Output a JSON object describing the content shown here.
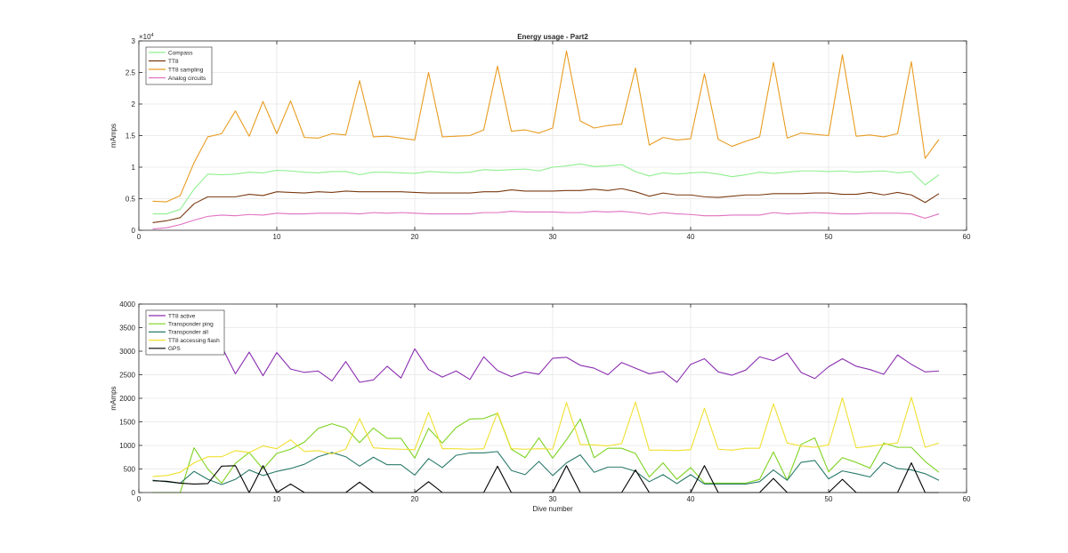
{
  "chart_data": [
    {
      "type": "line",
      "title": "Energy usage - Part2",
      "xlabel": "",
      "ylabel": "mAmps",
      "xlim": [
        0,
        60
      ],
      "ylim": [
        0,
        30000
      ],
      "x_ticks": [
        0,
        10,
        20,
        30,
        40,
        50,
        60
      ],
      "y_ticks": [
        0,
        5000,
        10000,
        15000,
        20000,
        25000,
        30000
      ],
      "y_tick_labels": [
        "0",
        "0.5",
        "1",
        "1.5",
        "2",
        "2.5",
        "3"
      ],
      "y_exponent": "×10",
      "y_exponent_power": "4",
      "grid": true,
      "legend_position": "top-left",
      "x": [
        1,
        2,
        3,
        4,
        5,
        6,
        7,
        8,
        9,
        10,
        11,
        12,
        13,
        14,
        15,
        16,
        17,
        18,
        19,
        20,
        21,
        22,
        23,
        24,
        25,
        26,
        27,
        28,
        29,
        30,
        31,
        32,
        33,
        34,
        35,
        36,
        37,
        38,
        39,
        40,
        41,
        42,
        43,
        44,
        45,
        46,
        47,
        48,
        49,
        50,
        51,
        52,
        53,
        54,
        55,
        56,
        57,
        58
      ],
      "series": [
        {
          "name": "Compass",
          "color": "#8fef8f",
          "values": [
            2600,
            2600,
            3300,
            6500,
            8900,
            8800,
            8900,
            9200,
            9100,
            9500,
            9400,
            9200,
            9100,
            9300,
            9300,
            8800,
            9200,
            9200,
            9100,
            9000,
            9300,
            9200,
            9100,
            9200,
            9600,
            9500,
            9600,
            9700,
            9400,
            10000,
            10200,
            10500,
            10100,
            10200,
            10400,
            9300,
            8600,
            9100,
            8900,
            9100,
            9200,
            8900,
            8500,
            8800,
            9200,
            9000,
            9200,
            9400,
            9400,
            9300,
            9400,
            9200,
            9300,
            9400,
            9100,
            9300,
            7200,
            8800
          ]
        },
        {
          "name": "TT8",
          "color": "#7a3a12",
          "values": [
            1200,
            1500,
            2000,
            4200,
            5300,
            5300,
            5300,
            5700,
            5500,
            6100,
            6000,
            5900,
            6100,
            6000,
            6200,
            6100,
            6100,
            6100,
            6100,
            6000,
            5900,
            5900,
            5900,
            5900,
            6100,
            6100,
            6400,
            6200,
            6200,
            6200,
            6300,
            6300,
            6500,
            6300,
            6600,
            6100,
            5400,
            5900,
            5600,
            5600,
            5300,
            5200,
            5400,
            5600,
            5600,
            5800,
            5800,
            5800,
            5900,
            5900,
            5700,
            5700,
            6000,
            5600,
            6000,
            5600,
            4400,
            5800
          ]
        },
        {
          "name": "TT8 sampling",
          "color": "#e89c20",
          "values": [
            4600,
            4500,
            5500,
            10700,
            14800,
            15300,
            18900,
            14900,
            20400,
            15300,
            20500,
            14700,
            14600,
            15300,
            15100,
            23700,
            14800,
            14900,
            14600,
            14300,
            25000,
            14800,
            14900,
            15000,
            15900,
            26000,
            15700,
            15900,
            15400,
            16200,
            28400,
            17300,
            16200,
            16600,
            16800,
            25700,
            13500,
            14700,
            14300,
            14500,
            24800,
            14400,
            13300,
            14100,
            14800,
            26600,
            14600,
            15400,
            15200,
            15000,
            27800,
            14900,
            15100,
            14800,
            15300,
            26700,
            11400,
            14400
          ]
        },
        {
          "name": "Analog circuits",
          "color": "#e070c0",
          "values": [
            200,
            400,
            900,
            1600,
            2200,
            2400,
            2300,
            2500,
            2400,
            2700,
            2600,
            2600,
            2700,
            2700,
            2700,
            2600,
            2800,
            2700,
            2800,
            2700,
            2600,
            2600,
            2600,
            2600,
            2800,
            2800,
            3000,
            2900,
            2900,
            2900,
            2800,
            2800,
            3000,
            2900,
            3000,
            2800,
            2500,
            2800,
            2600,
            2500,
            2300,
            2300,
            2400,
            2400,
            2400,
            2800,
            2600,
            2700,
            2800,
            2700,
            2600,
            2600,
            2700,
            2700,
            2700,
            2600,
            1900,
            2600
          ]
        }
      ]
    },
    {
      "type": "line",
      "title": "",
      "xlabel": "Dive number",
      "ylabel": "mAmps",
      "xlim": [
        0,
        60
      ],
      "ylim": [
        0,
        4000
      ],
      "x_ticks": [
        0,
        10,
        20,
        30,
        40,
        50,
        60
      ],
      "y_ticks": [
        0,
        500,
        1000,
        1500,
        2000,
        2500,
        3000,
        3500,
        4000
      ],
      "y_tick_labels": [
        "0",
        "500",
        "1000",
        "1500",
        "2000",
        "2500",
        "3000",
        "3500",
        "4000"
      ],
      "grid": true,
      "legend_position": "top-left",
      "x": [
        1,
        2,
        3,
        4,
        5,
        6,
        7,
        8,
        9,
        10,
        11,
        12,
        13,
        14,
        15,
        16,
        17,
        18,
        19,
        20,
        21,
        22,
        23,
        24,
        25,
        26,
        27,
        28,
        29,
        30,
        31,
        32,
        33,
        34,
        35,
        36,
        37,
        38,
        39,
        40,
        41,
        42,
        43,
        44,
        45,
        46,
        47,
        48,
        49,
        50,
        51,
        52,
        53,
        54,
        55,
        56,
        57,
        58
      ],
      "series": [
        {
          "name": "TT8 active",
          "color": "#8b2fb0",
          "values": [
            3300,
            3400,
            3350,
            3300,
            3150,
            3100,
            2520,
            2980,
            2480,
            2970,
            2620,
            2550,
            2580,
            2370,
            2780,
            2340,
            2390,
            2680,
            2430,
            3050,
            2610,
            2450,
            2580,
            2400,
            2880,
            2590,
            2460,
            2560,
            2510,
            2850,
            2870,
            2700,
            2640,
            2500,
            2760,
            2640,
            2520,
            2570,
            2340,
            2720,
            2840,
            2560,
            2490,
            2600,
            2880,
            2800,
            2960,
            2550,
            2420,
            2670,
            2840,
            2680,
            2610,
            2510,
            2920,
            2720,
            2560,
            2580
          ]
        },
        {
          "name": "Transponder ping",
          "color": "#7ed321",
          "values": [
            0,
            0,
            0,
            950,
            500,
            200,
            620,
            850,
            500,
            830,
            920,
            1070,
            1360,
            1460,
            1370,
            1060,
            1370,
            1150,
            1150,
            730,
            1360,
            1050,
            1380,
            1560,
            1570,
            1680,
            920,
            740,
            1160,
            730,
            1120,
            1560,
            740,
            940,
            940,
            830,
            330,
            630,
            280,
            530,
            200,
            200,
            200,
            200,
            280,
            860,
            260,
            1020,
            1160,
            440,
            740,
            640,
            520,
            1050,
            960,
            960,
            660,
            430
          ]
        },
        {
          "name": "Transponder all",
          "color": "#2a7a6a",
          "values": [
            260,
            230,
            200,
            450,
            280,
            170,
            280,
            480,
            360,
            450,
            510,
            600,
            760,
            850,
            760,
            560,
            750,
            590,
            590,
            370,
            720,
            530,
            790,
            840,
            840,
            870,
            470,
            380,
            660,
            360,
            630,
            800,
            430,
            540,
            540,
            450,
            230,
            380,
            190,
            380,
            180,
            180,
            180,
            180,
            230,
            480,
            260,
            640,
            680,
            290,
            460,
            400,
            330,
            640,
            510,
            480,
            400,
            260
          ]
        },
        {
          "name": "TT8 accessing flash",
          "color": "#f0e030",
          "values": [
            340,
            360,
            430,
            630,
            760,
            760,
            890,
            850,
            990,
            930,
            1120,
            870,
            890,
            820,
            920,
            1570,
            950,
            930,
            920,
            910,
            1700,
            930,
            930,
            920,
            930,
            1700,
            930,
            920,
            930,
            920,
            1910,
            1020,
            1010,
            990,
            1040,
            1920,
            900,
            900,
            890,
            910,
            1790,
            920,
            900,
            940,
            940,
            1880,
            1050,
            990,
            960,
            1010,
            2010,
            950,
            980,
            1020,
            1050,
            2020,
            960,
            1050
          ]
        },
        {
          "name": "GPS",
          "color": "#000000",
          "values": [
            250,
            240,
            200,
            180,
            190,
            560,
            570,
            0,
            570,
            0,
            180,
            0,
            0,
            0,
            0,
            220,
            0,
            0,
            0,
            0,
            230,
            0,
            0,
            0,
            0,
            560,
            0,
            0,
            0,
            0,
            570,
            0,
            0,
            0,
            0,
            480,
            0,
            0,
            0,
            0,
            570,
            0,
            0,
            0,
            0,
            300,
            0,
            0,
            0,
            0,
            280,
            0,
            0,
            0,
            0,
            630,
            0,
            0
          ]
        }
      ]
    }
  ]
}
